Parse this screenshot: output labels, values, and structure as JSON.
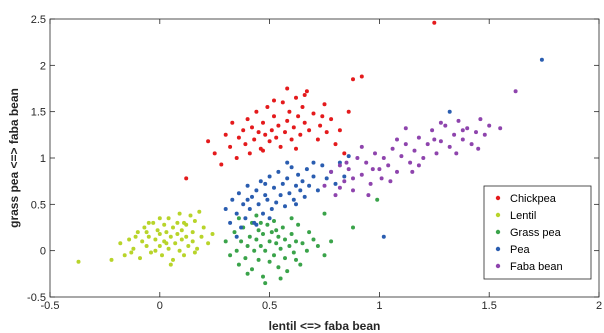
{
  "chart_data": {
    "type": "scatter",
    "title": "",
    "xlabel": "lentil <=> faba bean",
    "ylabel": "grass pea <=> faba bean",
    "xlim": [
      -0.5,
      2
    ],
    "ylim": [
      -0.5,
      2.5
    ],
    "xticks": [
      "-0.5",
      "0",
      "0.5",
      "1",
      "1.5",
      "2"
    ],
    "yticks": [
      "-0.5",
      "0",
      "0.5",
      "1",
      "1.5",
      "2",
      "2.5"
    ],
    "grid": false,
    "legend_position": "bottom-right",
    "series": [
      {
        "name": "Chickpea",
        "color": "#e41a1c",
        "points": [
          [
            0.22,
            1.18
          ],
          [
            0.25,
            1.05
          ],
          [
            0.28,
            0.93
          ],
          [
            0.3,
            1.25
          ],
          [
            0.32,
            1.12
          ],
          [
            0.33,
            1.38
          ],
          [
            0.35,
            1.0
          ],
          [
            0.36,
            1.22
          ],
          [
            0.38,
            1.3
          ],
          [
            0.39,
            1.15
          ],
          [
            0.4,
            1.42
          ],
          [
            0.41,
            1.05
          ],
          [
            0.42,
            1.33
          ],
          [
            0.43,
            1.2
          ],
          [
            0.44,
            1.5
          ],
          [
            0.45,
            1.28
          ],
          [
            0.46,
            1.1
          ],
          [
            0.47,
            1.38
          ],
          [
            0.48,
            1.25
          ],
          [
            0.49,
            1.55
          ],
          [
            0.5,
            1.18
          ],
          [
            0.51,
            1.3
          ],
          [
            0.52,
            1.45
          ],
          [
            0.53,
            1.22
          ],
          [
            0.54,
            1.35
          ],
          [
            0.55,
            1.12
          ],
          [
            0.56,
            1.6
          ],
          [
            0.57,
            1.28
          ],
          [
            0.58,
            1.4
          ],
          [
            0.59,
            1.5
          ],
          [
            0.6,
            1.2
          ],
          [
            0.61,
            1.33
          ],
          [
            0.62,
            1.65
          ],
          [
            0.63,
            1.45
          ],
          [
            0.64,
            1.25
          ],
          [
            0.65,
            1.55
          ],
          [
            0.66,
            1.38
          ],
          [
            0.67,
            1.72
          ],
          [
            0.68,
            1.3
          ],
          [
            0.7,
            1.48
          ],
          [
            0.72,
            1.2
          ],
          [
            0.73,
            1.35
          ],
          [
            0.75,
            1.58
          ],
          [
            0.76,
            1.28
          ],
          [
            0.78,
            1.42
          ],
          [
            0.8,
            1.15
          ],
          [
            0.82,
            1.3
          ],
          [
            0.84,
            1.05
          ],
          [
            0.86,
            1.5
          ],
          [
            0.88,
            1.85
          ],
          [
            0.92,
            1.88
          ],
          [
            0.47,
            1.08
          ],
          [
            0.58,
            1.75
          ],
          [
            0.62,
            1.1
          ],
          [
            0.66,
            1.68
          ],
          [
            0.74,
            1.45
          ],
          [
            0.12,
            0.78
          ],
          [
            0.52,
            1.62
          ],
          [
            1.25,
            2.46
          ]
        ]
      },
      {
        "name": "Lentil",
        "color": "#b8d42a",
        "points": [
          [
            -0.37,
            -0.12
          ],
          [
            -0.22,
            -0.1
          ],
          [
            -0.18,
            0.08
          ],
          [
            -0.16,
            -0.05
          ],
          [
            -0.14,
            0.12
          ],
          [
            -0.12,
            0.02
          ],
          [
            -0.1,
            0.2
          ],
          [
            -0.09,
            -0.08
          ],
          [
            -0.08,
            0.1
          ],
          [
            -0.07,
            0.25
          ],
          [
            -0.06,
            0.05
          ],
          [
            -0.05,
            0.15
          ],
          [
            -0.04,
            -0.02
          ],
          [
            -0.03,
            0.3
          ],
          [
            -0.02,
            0.12
          ],
          [
            -0.01,
            0.22
          ],
          [
            0.0,
            0.05
          ],
          [
            0.0,
            0.18
          ],
          [
            0.01,
            -0.05
          ],
          [
            0.02,
            0.28
          ],
          [
            0.02,
            0.1
          ],
          [
            0.03,
            0.2
          ],
          [
            0.04,
            0.02
          ],
          [
            0.04,
            0.35
          ],
          [
            0.05,
            0.15
          ],
          [
            0.06,
            -0.1
          ],
          [
            0.06,
            0.25
          ],
          [
            0.07,
            0.08
          ],
          [
            0.08,
            0.18
          ],
          [
            0.08,
            0.3
          ],
          [
            0.09,
            0.0
          ],
          [
            0.1,
            0.12
          ],
          [
            0.1,
            0.22
          ],
          [
            0.11,
            -0.05
          ],
          [
            0.12,
            0.15
          ],
          [
            0.12,
            0.28
          ],
          [
            0.13,
            0.05
          ],
          [
            0.14,
            0.38
          ],
          [
            0.15,
            0.1
          ],
          [
            0.15,
            0.2
          ],
          [
            0.16,
            0.32
          ],
          [
            0.17,
            0.02
          ],
          [
            0.18,
            0.42
          ],
          [
            0.19,
            0.15
          ],
          [
            0.2,
            0.25
          ],
          [
            0.22,
            0.08
          ],
          [
            0.24,
            0.18
          ],
          [
            -0.05,
            0.3
          ],
          [
            0.0,
            0.35
          ],
          [
            -0.11,
            0.15
          ],
          [
            0.05,
            -0.15
          ],
          [
            -0.13,
            -0.02
          ],
          [
            0.09,
            0.4
          ],
          [
            0.16,
            -0.02
          ],
          [
            -0.02,
            0.0
          ],
          [
            0.11,
            0.3
          ],
          [
            0.03,
            0.08
          ],
          [
            -0.06,
            0.2
          ]
        ]
      },
      {
        "name": "Grass pea",
        "color": "#3aa34a",
        "points": [
          [
            0.3,
            0.1
          ],
          [
            0.32,
            -0.05
          ],
          [
            0.34,
            0.2
          ],
          [
            0.35,
            0.0
          ],
          [
            0.36,
            -0.15
          ],
          [
            0.37,
            0.1
          ],
          [
            0.38,
            0.25
          ],
          [
            0.39,
            -0.08
          ],
          [
            0.4,
            0.05
          ],
          [
            0.41,
            0.15
          ],
          [
            0.42,
            -0.2
          ],
          [
            0.42,
            0.3
          ],
          [
            0.43,
            0.0
          ],
          [
            0.44,
            0.12
          ],
          [
            0.45,
            -0.1
          ],
          [
            0.45,
            0.22
          ],
          [
            0.46,
            0.05
          ],
          [
            0.47,
            -0.28
          ],
          [
            0.47,
            0.18
          ],
          [
            0.48,
            0.0
          ],
          [
            0.49,
            0.28
          ],
          [
            0.5,
            -0.12
          ],
          [
            0.5,
            0.1
          ],
          [
            0.51,
            0.2
          ],
          [
            0.52,
            -0.05
          ],
          [
            0.52,
            0.32
          ],
          [
            0.53,
            0.08
          ],
          [
            0.54,
            -0.18
          ],
          [
            0.54,
            0.15
          ],
          [
            0.55,
            0.02
          ],
          [
            0.56,
            0.25
          ],
          [
            0.57,
            -0.08
          ],
          [
            0.57,
            0.12
          ],
          [
            0.58,
            -0.22
          ],
          [
            0.59,
            0.05
          ],
          [
            0.6,
            0.18
          ],
          [
            0.61,
            -0.02
          ],
          [
            0.62,
            0.1
          ],
          [
            0.63,
            0.28
          ],
          [
            0.64,
            -0.15
          ],
          [
            0.65,
            0.08
          ],
          [
            0.67,
            0.0
          ],
          [
            0.68,
            0.2
          ],
          [
            0.7,
            0.12
          ],
          [
            0.72,
            0.05
          ],
          [
            0.75,
            -0.05
          ],
          [
            0.78,
            0.1
          ],
          [
            0.36,
            0.35
          ],
          [
            0.48,
            -0.35
          ],
          [
            0.55,
            -0.3
          ],
          [
            0.44,
            0.38
          ],
          [
            0.6,
            0.35
          ],
          [
            0.4,
            -0.25
          ],
          [
            0.53,
            0.22
          ],
          [
            0.62,
            -0.1
          ],
          [
            0.88,
            0.25
          ],
          [
            0.99,
            0.55
          ],
          [
            0.75,
            0.4
          ],
          [
            0.46,
            0.3
          ]
        ]
      },
      {
        "name": "Pea",
        "color": "#2a5db0",
        "points": [
          [
            0.3,
            0.45
          ],
          [
            0.32,
            0.3
          ],
          [
            0.33,
            0.55
          ],
          [
            0.35,
            0.4
          ],
          [
            0.36,
            0.62
          ],
          [
            0.37,
            0.25
          ],
          [
            0.38,
            0.5
          ],
          [
            0.39,
            0.35
          ],
          [
            0.4,
            0.7
          ],
          [
            0.41,
            0.45
          ],
          [
            0.42,
            0.58
          ],
          [
            0.43,
            0.3
          ],
          [
            0.44,
            0.65
          ],
          [
            0.45,
            0.5
          ],
          [
            0.46,
            0.75
          ],
          [
            0.47,
            0.4
          ],
          [
            0.48,
            0.6
          ],
          [
            0.49,
            0.55
          ],
          [
            0.5,
            0.8
          ],
          [
            0.51,
            0.45
          ],
          [
            0.52,
            0.68
          ],
          [
            0.53,
            0.52
          ],
          [
            0.54,
            0.85
          ],
          [
            0.55,
            0.6
          ],
          [
            0.56,
            0.72
          ],
          [
            0.57,
            0.48
          ],
          [
            0.58,
            0.78
          ],
          [
            0.59,
            0.62
          ],
          [
            0.6,
            0.9
          ],
          [
            0.61,
            0.55
          ],
          [
            0.62,
            0.7
          ],
          [
            0.63,
            0.82
          ],
          [
            0.64,
            0.65
          ],
          [
            0.65,
            0.75
          ],
          [
            0.66,
            0.58
          ],
          [
            0.67,
            0.88
          ],
          [
            0.68,
            0.7
          ],
          [
            0.7,
            0.8
          ],
          [
            0.72,
            0.65
          ],
          [
            0.74,
            0.92
          ],
          [
            0.76,
            0.78
          ],
          [
            0.78,
            0.85
          ],
          [
            0.8,
            0.72
          ],
          [
            0.82,
            0.95
          ],
          [
            0.84,
            0.8
          ],
          [
            0.86,
            1.02
          ],
          [
            0.44,
            0.28
          ],
          [
            0.35,
            0.15
          ],
          [
            0.5,
            0.35
          ],
          [
            0.58,
            0.95
          ],
          [
            0.4,
            0.55
          ],
          [
            0.62,
            0.5
          ],
          [
            0.7,
            0.95
          ],
          [
            1.02,
            0.15
          ],
          [
            1.32,
            1.5
          ],
          [
            1.74,
            2.06
          ],
          [
            0.48,
            0.72
          ]
        ]
      },
      {
        "name": "Faba bean",
        "color": "#8e44ad",
        "points": [
          [
            0.75,
            0.7
          ],
          [
            0.78,
            0.85
          ],
          [
            0.8,
            0.6
          ],
          [
            0.82,
            0.92
          ],
          [
            0.84,
            0.75
          ],
          [
            0.86,
            0.88
          ],
          [
            0.88,
            0.65
          ],
          [
            0.9,
            1.0
          ],
          [
            0.92,
            0.82
          ],
          [
            0.94,
            0.95
          ],
          [
            0.96,
            0.72
          ],
          [
            0.98,
            1.05
          ],
          [
            1.0,
            0.88
          ],
          [
            1.01,
            0.78
          ],
          [
            1.02,
            1.0
          ],
          [
            1.04,
            0.92
          ],
          [
            1.06,
            1.1
          ],
          [
            1.08,
            0.85
          ],
          [
            1.1,
            1.02
          ],
          [
            1.12,
            1.15
          ],
          [
            1.14,
            0.95
          ],
          [
            1.16,
            1.08
          ],
          [
            1.18,
            1.22
          ],
          [
            1.2,
            1.0
          ],
          [
            1.22,
            1.15
          ],
          [
            1.24,
            1.3
          ],
          [
            1.26,
            1.05
          ],
          [
            1.28,
            1.18
          ],
          [
            1.3,
            1.35
          ],
          [
            1.32,
            1.12
          ],
          [
            1.34,
            1.25
          ],
          [
            1.36,
            1.4
          ],
          [
            1.38,
            1.2
          ],
          [
            1.4,
            1.32
          ],
          [
            1.42,
            1.15
          ],
          [
            1.44,
            1.28
          ],
          [
            1.46,
            1.42
          ],
          [
            1.48,
            1.25
          ],
          [
            1.5,
            1.35
          ],
          [
            1.55,
            1.32
          ],
          [
            0.95,
            0.6
          ],
          [
            1.05,
            0.75
          ],
          [
            0.85,
            0.95
          ],
          [
            1.15,
            0.85
          ],
          [
            1.25,
            1.2
          ],
          [
            1.35,
            1.05
          ],
          [
            0.92,
            1.12
          ],
          [
            1.12,
            1.32
          ],
          [
            1.62,
            1.72
          ],
          [
            0.97,
            0.88
          ],
          [
            1.08,
            1.2
          ],
          [
            1.18,
            0.92
          ],
          [
            1.28,
            1.38
          ],
          [
            0.88,
            0.78
          ],
          [
            1.38,
            1.3
          ],
          [
            1.45,
            1.1
          ],
          [
            0.82,
            0.68
          ]
        ]
      }
    ]
  }
}
